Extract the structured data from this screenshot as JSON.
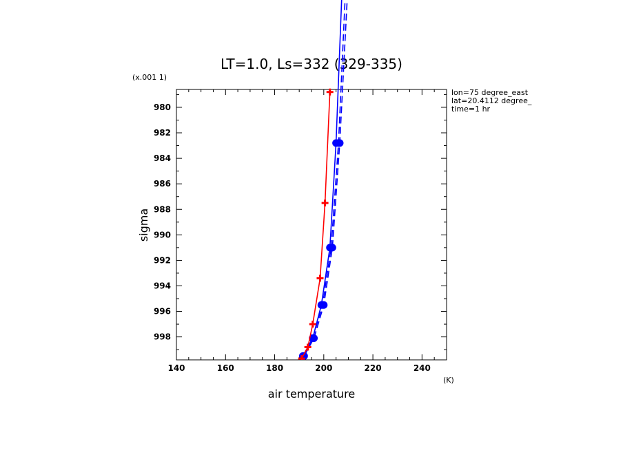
{
  "chart_data": {
    "type": "line",
    "title": "LT=1.0, Ls=332 (329-335)",
    "xlabel": "air temperature",
    "x_units": "(K)",
    "ylabel": "sigma",
    "y_scale_note": "(x.001 1)",
    "xlim": [
      140,
      250
    ],
    "ylim": [
      999.8,
      978.6
    ],
    "y_inverted": true,
    "x_ticks": [
      "140",
      "160",
      "180",
      "200",
      "220",
      "240"
    ],
    "y_ticks": [
      "980",
      "982",
      "984",
      "986",
      "988",
      "990",
      "992",
      "994",
      "996",
      "998"
    ],
    "annotations": [
      "lon=75 degree_east",
      "lat=20.4112 degree_",
      "time=1 hr"
    ],
    "grid": false,
    "series": [
      {
        "color": "#ff0000",
        "line": "solid",
        "marker": "plus",
        "x": [
          191.0,
          193.5,
          195.5,
          198.5,
          200.5,
          202.5
        ],
        "y": [
          999.7,
          998.8,
          997.0,
          993.4,
          987.5,
          978.8
        ]
      },
      {
        "color": "#0000ff",
        "line": "solid",
        "marker": "dot",
        "x": [
          191.5,
          195.5,
          199.0,
          202.5,
          205.0,
          208.0
        ],
        "y": [
          999.5,
          998.1,
          995.5,
          991.0,
          982.8,
          968.0
        ]
      },
      {
        "color": "#0000ff",
        "line": "dashed",
        "marker": "dot",
        "x": [
          191.5,
          195.5,
          199.5,
          203.0,
          206.0,
          209.5
        ],
        "y": [
          999.5,
          998.1,
          995.5,
          991.0,
          982.8,
          968.0
        ]
      },
      {
        "color": "#0000ff",
        "line": "dashed",
        "marker": "dot",
        "x": [
          192.0,
          196.0,
          200.0,
          203.5,
          206.5,
          210.5
        ],
        "y": [
          999.5,
          998.1,
          995.5,
          991.0,
          982.8,
          968.0
        ]
      }
    ]
  }
}
